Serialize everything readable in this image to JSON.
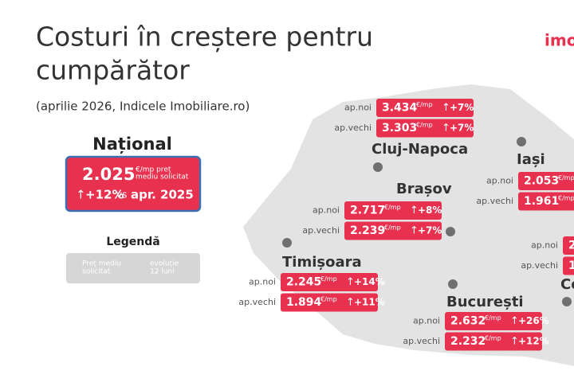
{
  "header": {
    "title_lines": [
      "Costuri în creștere pentru",
      "cumpărător"
    ],
    "subtitle": "(aprilie 2026, Indicele Imobiliare.ro)",
    "logo": "imo"
  },
  "unit": "€/mp",
  "arrow": "↑",
  "national": {
    "heading": "Național",
    "value": "2.025",
    "unit_note_lines": [
      "€/mp preț",
      "mediu solicitat"
    ],
    "change": "+12%",
    "vs": "vs",
    "period": "apr. 2025"
  },
  "legend": {
    "heading": "Legendă",
    "items": [
      [
        "Preț mediu",
        "solicitat"
      ],
      [
        "evoluție",
        "12 luni"
      ]
    ]
  },
  "cities": [
    {
      "name": "Cluj-Napoca",
      "rows": [
        {
          "label": "ap.noi",
          "value": "3.434",
          "change": "+7%"
        },
        {
          "label": "ap.vechi",
          "value": "3.303",
          "change": "+7%"
        }
      ]
    },
    {
      "name": "Brașov",
      "rows": [
        {
          "label": "ap.noi",
          "value": "2.717",
          "change": "+8%"
        },
        {
          "label": "ap.vechi",
          "value": "2.239",
          "change": "+7%"
        }
      ]
    },
    {
      "name": "Timișoara",
      "rows": [
        {
          "label": "ap.noi",
          "value": "2.245",
          "change": "+14%"
        },
        {
          "label": "ap.vechi",
          "value": "1.894",
          "change": "+11%"
        }
      ]
    },
    {
      "name": "București",
      "rows": [
        {
          "label": "ap.noi",
          "value": "2.632",
          "change": "+26%"
        },
        {
          "label": "ap.vechi",
          "value": "2.232",
          "change": "+12%"
        }
      ]
    },
    {
      "name": "Iași",
      "rows": [
        {
          "label": "ap.noi",
          "value": "2.053"
        },
        {
          "label": "ap.vechi",
          "value": "1.961"
        }
      ]
    },
    {
      "name": "Co",
      "rows": [
        {
          "label": "ap.noi",
          "value": "2"
        },
        {
          "label": "ap.vechi",
          "value": "1"
        }
      ]
    }
  ]
}
